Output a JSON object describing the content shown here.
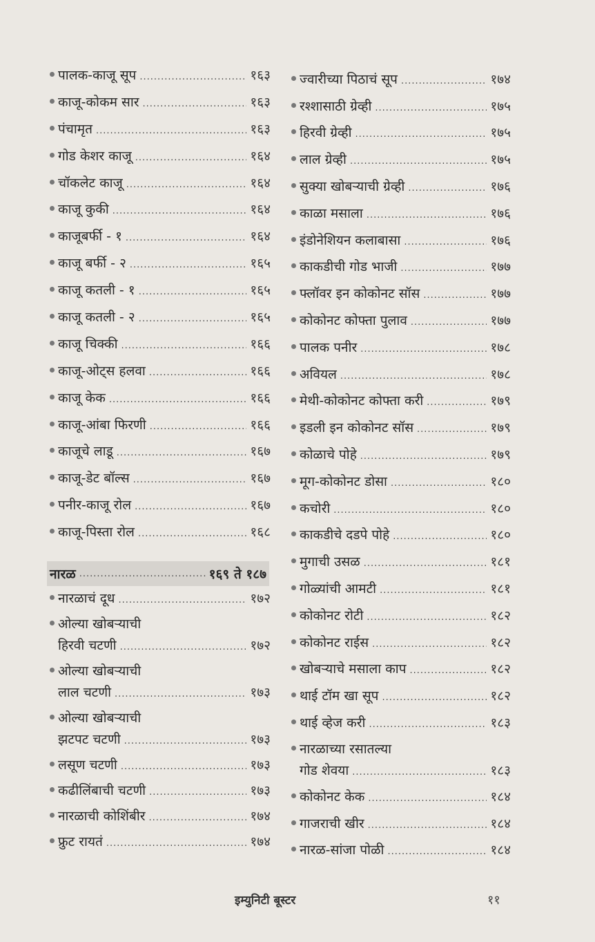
{
  "left_column": {
    "items_top": [
      {
        "title": "पालक-काजू सूप",
        "page": "१६३"
      },
      {
        "title": "काजू-कोकम सार",
        "page": "१६३"
      },
      {
        "title": "पंचामृत",
        "page": "१६३"
      },
      {
        "title": "गोड केशर काजू",
        "page": "१६४"
      },
      {
        "title": "चॉकलेट काजू",
        "page": "१६४"
      },
      {
        "title": "काजू कुकी",
        "page": "१६४"
      },
      {
        "title": "काजूबर्फी - १",
        "page": "१६४"
      },
      {
        "title": "काजू बर्फी - २",
        "page": "१६५"
      },
      {
        "title": "काजू कतली - १",
        "page": "१६५"
      },
      {
        "title": "काजू कतली - २",
        "page": "१६५"
      },
      {
        "title": "काजू चिक्की",
        "page": "१६६"
      },
      {
        "title": "काजू-ओट्स हलवा",
        "page": "१६६"
      },
      {
        "title": "काजू केक",
        "page": "१६६"
      },
      {
        "title": "काजू-आंबा फिरणी",
        "page": "१६६"
      },
      {
        "title": "काजूचे लाडू",
        "page": "१६७"
      },
      {
        "title": "काजू-डेट बॉल्स",
        "page": "१६७"
      },
      {
        "title": "पनीर-काजू रोल",
        "page": "१६७"
      },
      {
        "title": "काजू-पिस्ता रोल",
        "page": "१६८"
      }
    ],
    "section": {
      "title": "नारळ",
      "range": "१६९ ते १८७"
    },
    "items_bottom": [
      {
        "title": "नारळाचं दूध",
        "page": "१७२"
      },
      {
        "title_line1": "ओल्या खोबऱ्याची",
        "title": "हिरवी चटणी",
        "page": "१७२"
      },
      {
        "title_line1": "ओल्या खोबऱ्याची",
        "title": "लाल चटणी",
        "page": "१७३"
      },
      {
        "title_line1": "ओल्या खोबऱ्याची",
        "title": "झटपट चटणी",
        "page": "१७३"
      },
      {
        "title": "लसूण चटणी",
        "page": "१७३"
      },
      {
        "title": "कढीलिंबाची चटणी",
        "page": "१७३"
      },
      {
        "title": "नारळाची कोशिंबीर",
        "page": "१७४"
      },
      {
        "title": "फ्रुट रायतं",
        "page": "१७४"
      }
    ]
  },
  "right_column": {
    "items": [
      {
        "title": "ज्वारीच्या पिठाचं सूप",
        "page": "१७४"
      },
      {
        "title": "रश्शासाठी ग्रेव्ही",
        "page": "१७५"
      },
      {
        "title": "हिरवी ग्रेव्ही",
        "page": "१७५"
      },
      {
        "title": "लाल ग्रेव्ही",
        "page": "१७५"
      },
      {
        "title": "सुक्या खोबऱ्याची ग्रेव्ही",
        "page": "१७६"
      },
      {
        "title": "काळा मसाला",
        "page": "१७६"
      },
      {
        "title": "इंडोनेशियन कलाबासा",
        "page": "१७६"
      },
      {
        "title": "काकडीची गोड भाजी",
        "page": "१७७"
      },
      {
        "title": "फ्लॉवर इन कोकोनट सॉस",
        "page": "१७७"
      },
      {
        "title": "कोकोनट कोफ्ता पुलाव",
        "page": "१७७"
      },
      {
        "title": "पालक पनीर",
        "page": "१७८"
      },
      {
        "title": "अवियल",
        "page": "१७८"
      },
      {
        "title": "मेथी-कोकोनट कोफ्ता करी",
        "page": "१७९"
      },
      {
        "title": "इडली इन कोकोनट सॉस",
        "page": "१७९"
      },
      {
        "title": "कोळाचे पोहे",
        "page": "१७९"
      },
      {
        "title": "मूग-कोकोनट डोसा",
        "page": "१८०"
      },
      {
        "title": "कचोरी",
        "page": "१८०"
      },
      {
        "title": "काकडीचे दडपे पोहे",
        "page": "१८०"
      },
      {
        "title": "मुगाची उसळ",
        "page": "१८१"
      },
      {
        "title": "गोळ्यांची आमटी",
        "page": "१८१"
      },
      {
        "title": "कोकोनट रोटी",
        "page": "१८२"
      },
      {
        "title": "कोकोनट राईस",
        "page": "१८२"
      },
      {
        "title": "खोबऱ्याचे मसाला काप",
        "page": "१८२"
      },
      {
        "title": "थाई टॉम खा सूप",
        "page": "१८२"
      },
      {
        "title": "थाई व्हेज करी",
        "page": "१८३"
      },
      {
        "title_line1": "नारळाच्या रसातल्या",
        "title": "गोड शेवया",
        "page": "१८३"
      },
      {
        "title": "कोकोनट केक",
        "page": "१८४"
      },
      {
        "title": "गाजराची खीर",
        "page": "१८४"
      },
      {
        "title": "नारळ-सांजा पोळी",
        "page": "१८४"
      }
    ]
  },
  "footer": {
    "book_title": "इम्युनिटी बूस्टर",
    "page_number": "११"
  },
  "colors": {
    "paper": "#ebe8e3",
    "text": "#262626",
    "section_band": "#d6d3ce"
  }
}
